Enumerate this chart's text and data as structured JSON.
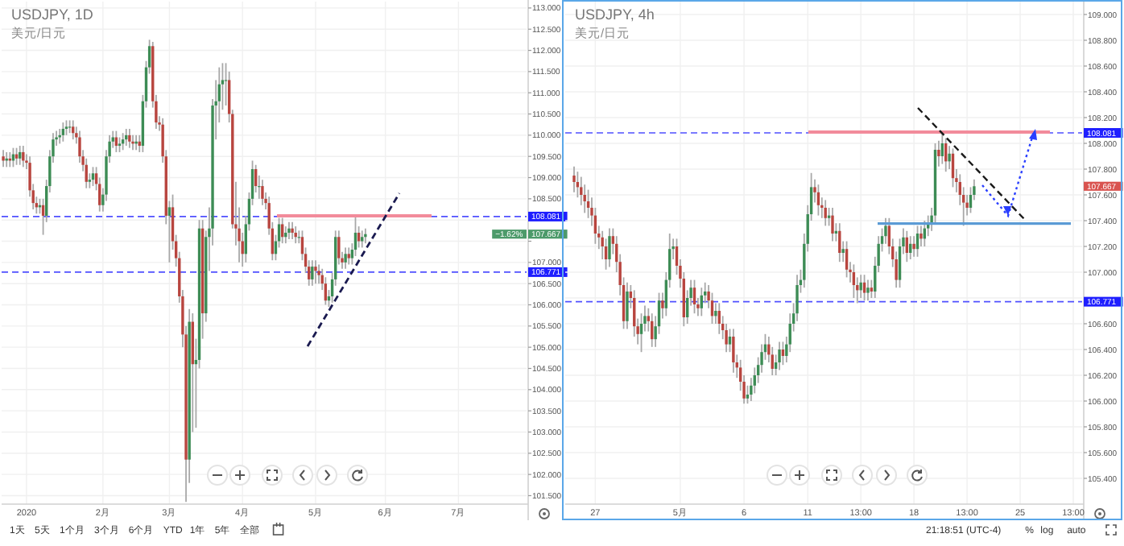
{
  "chart_data": [
    {
      "type": "candlestick",
      "title": "USDJPY, 1D",
      "subtitle": "美元/日元",
      "grid": true,
      "categories": [
        null,
        null,
        null,
        null,
        null,
        null,
        null,
        "2020",
        null,
        null,
        null,
        null,
        null,
        null,
        null,
        null,
        null,
        null,
        null,
        null,
        null,
        null,
        null,
        null,
        null,
        null,
        null,
        null,
        null,
        null,
        "2月",
        null,
        null,
        null,
        null,
        null,
        null,
        null,
        null,
        null,
        null,
        null,
        null,
        null,
        null,
        null,
        null,
        null,
        null,
        null,
        "3月",
        null,
        null,
        null,
        null,
        null,
        null,
        null,
        null,
        null,
        null,
        null,
        null,
        null,
        null,
        null,
        null,
        null,
        null,
        null,
        null,
        null,
        "4月",
        null,
        null,
        null,
        null,
        null,
        null,
        null,
        null,
        null,
        null,
        null,
        null,
        null,
        null,
        null,
        null,
        null,
        null,
        null,
        null,
        null,
        "5月",
        null,
        null,
        null,
        null,
        null,
        null,
        null,
        null,
        null,
        null,
        null,
        null,
        null,
        null,
        null,
        null,
        null,
        null,
        null,
        null,
        "6月",
        null,
        null,
        null,
        null,
        null,
        null,
        null,
        null,
        null,
        null,
        null,
        null,
        null,
        null,
        null,
        null,
        null,
        null,
        null,
        null,
        null,
        "7月",
        null,
        null,
        null,
        null,
        null,
        null,
        null,
        null,
        null,
        null,
        null,
        null,
        null,
        null,
        null,
        null,
        null,
        null,
        null,
        null
      ],
      "ylim": [
        101.3,
        113.15
      ],
      "yticks": [
        {
          "value": 101.5,
          "label": "101.500"
        },
        {
          "value": 102,
          "label": "102.000"
        },
        {
          "value": 102.5,
          "label": "102.500"
        },
        {
          "value": 103,
          "label": "103.000"
        },
        {
          "value": 103.5,
          "label": "103.500"
        },
        {
          "value": 104,
          "label": "104.000"
        },
        {
          "value": 104.5,
          "label": "104.500"
        },
        {
          "value": 105,
          "label": "105.000"
        },
        {
          "value": 105.5,
          "label": "105.500"
        },
        {
          "value": 106,
          "label": "106.000"
        },
        {
          "value": 106.5,
          "label": "106.500"
        },
        {
          "value": 107,
          "label": "107.000"
        },
        {
          "value": 107.5,
          "label": null
        },
        {
          "value": 108,
          "label": null
        },
        {
          "value": 108.5,
          "label": "108.500"
        },
        {
          "value": 109,
          "label": "109.000"
        },
        {
          "value": 109.5,
          "label": "109.500"
        },
        {
          "value": 110,
          "label": "110.000"
        },
        {
          "value": 110.5,
          "label": "110.500"
        },
        {
          "value": 111,
          "label": "111.000"
        },
        {
          "value": 111.5,
          "label": "111.500"
        },
        {
          "value": 112,
          "label": "112.000"
        },
        {
          "value": 112.5,
          "label": "112.500"
        },
        {
          "value": 113,
          "label": "113.000"
        }
      ],
      "ohlc": [
        [
          109.5,
          109.65,
          109.25,
          109.4
        ],
        [
          109.4,
          109.6,
          109.25,
          109.45
        ],
        [
          109.45,
          109.6,
          109.25,
          109.4
        ],
        [
          109.4,
          109.7,
          109.25,
          109.55
        ],
        [
          109.55,
          109.7,
          109.3,
          109.45
        ],
        [
          109.45,
          109.75,
          109.3,
          109.6
        ],
        [
          109.6,
          109.75,
          109.25,
          109.4
        ],
        [
          109.4,
          109.55,
          109.2,
          109.35
        ],
        [
          109.35,
          109.5,
          108.55,
          108.7
        ],
        [
          108.7,
          108.85,
          108.25,
          108.4
        ],
        [
          108.4,
          108.55,
          108.15,
          108.3
        ],
        [
          108.3,
          108.5,
          108.15,
          108.35
        ],
        [
          108.35,
          108.5,
          107.65,
          108.1
        ],
        [
          108.1,
          108.95,
          107.95,
          108.8
        ],
        [
          108.8,
          109.65,
          108.65,
          109.5
        ],
        [
          109.5,
          110.05,
          109.35,
          109.9
        ],
        [
          109.9,
          110.1,
          109.75,
          109.95
        ],
        [
          109.95,
          110.15,
          109.8,
          110.0
        ],
        [
          110.0,
          110.3,
          109.85,
          110.15
        ],
        [
          110.15,
          110.35,
          110.0,
          110.2
        ],
        [
          110.2,
          110.35,
          110.05,
          110.2
        ],
        [
          110.2,
          110.35,
          109.9,
          110.05
        ],
        [
          110.05,
          110.2,
          109.8,
          109.95
        ],
        [
          109.95,
          110.1,
          109.35,
          109.5
        ],
        [
          109.5,
          109.65,
          109.15,
          109.3
        ],
        [
          109.3,
          109.45,
          108.75,
          108.9
        ],
        [
          108.9,
          109.1,
          108.75,
          108.95
        ],
        [
          108.95,
          109.25,
          108.8,
          109.1
        ],
        [
          109.1,
          109.25,
          108.7,
          108.85
        ],
        [
          108.85,
          109.0,
          108.2,
          108.35
        ],
        [
          108.35,
          108.75,
          108.2,
          108.6
        ],
        [
          108.6,
          109.65,
          108.45,
          109.5
        ],
        [
          109.5,
          110.0,
          109.35,
          109.85
        ],
        [
          109.85,
          110.1,
          109.7,
          109.95
        ],
        [
          109.95,
          110.1,
          109.6,
          109.75
        ],
        [
          109.75,
          109.95,
          109.6,
          109.8
        ],
        [
          109.8,
          110.05,
          109.65,
          109.9
        ],
        [
          109.9,
          110.15,
          109.75,
          110.0
        ],
        [
          110.0,
          110.15,
          109.7,
          109.85
        ],
        [
          109.85,
          110.0,
          109.65,
          109.8
        ],
        [
          109.8,
          110.0,
          109.65,
          109.85
        ],
        [
          109.85,
          110.0,
          109.6,
          109.75
        ],
        [
          109.75,
          110.95,
          109.6,
          110.8
        ],
        [
          110.8,
          111.75,
          110.65,
          111.6
        ],
        [
          111.6,
          112.25,
          111.45,
          112.1
        ],
        [
          112.1,
          112.2,
          110.65,
          110.8
        ],
        [
          110.8,
          110.95,
          110.15,
          110.3
        ],
        [
          110.3,
          110.45,
          110.1,
          110.25
        ],
        [
          110.25,
          110.4,
          109.35,
          109.5
        ],
        [
          109.5,
          109.65,
          107.9,
          108.1
        ],
        [
          108.1,
          108.45,
          107.0,
          108.3
        ],
        [
          108.3,
          108.6,
          107.3,
          107.5
        ],
        [
          107.5,
          107.65,
          106.9,
          107.1
        ],
        [
          107.1,
          107.25,
          106.05,
          106.2
        ],
        [
          106.2,
          106.35,
          105.0,
          105.3
        ],
        [
          105.3,
          105.5,
          101.35,
          102.35
        ],
        [
          102.35,
          105.9,
          101.8,
          105.6
        ],
        [
          105.6,
          105.8,
          103.0,
          104.6
        ],
        [
          104.6,
          105.2,
          103.1,
          104.7
        ],
        [
          104.7,
          108.0,
          104.5,
          107.8
        ],
        [
          107.8,
          108.0,
          105.2,
          105.8
        ],
        [
          105.8,
          107.75,
          105.6,
          107.6
        ],
        [
          107.6,
          108.3,
          106.8,
          107.8
        ],
        [
          107.8,
          110.85,
          107.4,
          110.7
        ],
        [
          110.7,
          111.3,
          109.9,
          110.8
        ],
        [
          110.8,
          111.6,
          110.3,
          111.2
        ],
        [
          111.2,
          111.7,
          110.6,
          111.3
        ],
        [
          111.3,
          111.7,
          110.7,
          111.3
        ],
        [
          111.3,
          111.5,
          110.3,
          110.5
        ],
        [
          110.5,
          110.6,
          107.8,
          107.9
        ],
        [
          107.9,
          108.9,
          107.4,
          107.8
        ],
        [
          107.8,
          108.3,
          107.0,
          107.5
        ],
        [
          107.5,
          107.7,
          106.9,
          107.2
        ],
        [
          107.2,
          108.1,
          107.0,
          107.9
        ],
        [
          107.9,
          108.65,
          107.75,
          108.5
        ],
        [
          108.5,
          109.4,
          108.35,
          109.2
        ],
        [
          109.2,
          109.3,
          108.65,
          108.8
        ],
        [
          108.8,
          109.05,
          108.5,
          108.8
        ],
        [
          108.8,
          108.95,
          108.35,
          108.5
        ],
        [
          108.5,
          108.65,
          108.25,
          108.4
        ],
        [
          108.4,
          108.55,
          107.65,
          107.8
        ],
        [
          107.8,
          107.95,
          107.05,
          107.2
        ],
        [
          107.2,
          107.65,
          107.05,
          107.5
        ],
        [
          107.5,
          108.05,
          107.35,
          107.9
        ],
        [
          107.9,
          108.05,
          107.45,
          107.6
        ],
        [
          107.6,
          107.85,
          107.45,
          107.7
        ],
        [
          107.7,
          107.95,
          107.55,
          107.8
        ],
        [
          107.8,
          107.95,
          107.55,
          107.7
        ],
        [
          107.7,
          107.85,
          107.45,
          107.6
        ],
        [
          107.6,
          107.75,
          107.45,
          107.6
        ],
        [
          107.6,
          107.75,
          107.05,
          107.2
        ],
        [
          107.2,
          107.35,
          106.75,
          106.9
        ],
        [
          106.9,
          107.05,
          106.45,
          106.6
        ],
        [
          106.6,
          107.05,
          106.45,
          106.9
        ],
        [
          106.9,
          107.05,
          106.5,
          106.8
        ],
        [
          106.8,
          106.95,
          106.5,
          106.7
        ],
        [
          106.7,
          106.85,
          106.35,
          106.5
        ],
        [
          106.5,
          106.65,
          106.0,
          106.1
        ],
        [
          106.1,
          106.35,
          105.95,
          106.2
        ],
        [
          106.2,
          106.75,
          106.05,
          106.6
        ],
        [
          106.6,
          107.75,
          106.45,
          107.6
        ],
        [
          107.6,
          107.75,
          106.95,
          107.1
        ],
        [
          107.1,
          107.25,
          106.85,
          107.0
        ],
        [
          107.0,
          107.35,
          106.85,
          107.2
        ],
        [
          107.2,
          107.35,
          106.95,
          107.1
        ],
        [
          107.1,
          107.45,
          106.95,
          107.3
        ],
        [
          107.3,
          108.1,
          107.15,
          107.7
        ],
        [
          107.7,
          107.85,
          107.35,
          107.5
        ],
        [
          107.5,
          107.75,
          107.35,
          107.6
        ],
        [
          107.6,
          107.8,
          107.45,
          107.667
        ],
        null,
        null,
        null,
        null,
        null,
        null,
        null,
        null,
        null,
        null,
        null,
        null,
        null,
        null,
        null,
        null,
        null,
        null,
        null,
        null,
        null,
        null,
        null,
        null,
        null,
        null,
        null,
        null,
        null,
        null,
        null,
        null,
        null,
        null,
        null,
        null,
        null,
        null,
        null,
        null,
        null,
        null,
        null,
        null,
        null,
        null,
        null,
        null
      ],
      "ref_lines": [
        {
          "axis": "y",
          "value": 108.081,
          "label": "108.081",
          "color": "#5050ff",
          "line_style": "dashed"
        },
        {
          "axis": "y",
          "value": 106.771,
          "label": "106.771",
          "color": "#5050ff",
          "line_style": "dashed"
        }
      ],
      "annotations": [
        "−1.62%",
        "107.667",
        "1天",
        "5天",
        "1个月",
        "3个月",
        "6个月",
        "YTD",
        "1年",
        "5年",
        "全部"
      ]
    },
    {
      "type": "candlestick",
      "title": "USDJPY, 4h",
      "subtitle": "美元/日元",
      "grid": true,
      "categories": [
        null,
        null,
        null,
        null,
        null,
        null,
        null,
        null,
        "27",
        null,
        null,
        null,
        null,
        null,
        null,
        null,
        null,
        null,
        null,
        null,
        null,
        null,
        null,
        null,
        null,
        null,
        null,
        null,
        null,
        null,
        null,
        null,
        "5月",
        null,
        null,
        null,
        null,
        null,
        null,
        null,
        null,
        null,
        null,
        null,
        null,
        null,
        null,
        null,
        null,
        null,
        "6",
        null,
        null,
        null,
        null,
        null,
        null,
        null,
        null,
        null,
        null,
        null,
        null,
        null,
        null,
        null,
        null,
        null,
        "11",
        null,
        null,
        null,
        null,
        null,
        null,
        null,
        null,
        null,
        null,
        null,
        null,
        null,
        null,
        "13:00",
        null,
        null,
        null,
        null,
        null,
        null,
        null,
        null,
        null,
        null,
        null,
        null,
        null,
        null,
        "18",
        null,
        null,
        null,
        null,
        null,
        null,
        null,
        null,
        null,
        null,
        null,
        null,
        null,
        null,
        "13:00",
        null,
        null,
        null,
        null,
        null,
        null,
        null,
        null,
        null,
        null,
        null,
        null,
        null,
        null,
        "25",
        null,
        null,
        null,
        null,
        null,
        null,
        null,
        null,
        null,
        null,
        null,
        null,
        null,
        null,
        "13:00",
        null,
        null
      ],
      "ylim": [
        105.2,
        109.1
      ],
      "yticks": [
        {
          "value": 105.4,
          "label": "105.400"
        },
        {
          "value": 105.6,
          "label": "105.600"
        },
        {
          "value": 105.8,
          "label": "105.800"
        },
        {
          "value": 106,
          "label": "106.000"
        },
        {
          "value": 106.2,
          "label": "106.200"
        },
        {
          "value": 106.4,
          "label": "106.400"
        },
        {
          "value": 106.6,
          "label": "106.600"
        },
        {
          "value": 106.8,
          "label": null
        },
        {
          "value": 107,
          "label": "107.000"
        },
        {
          "value": 107.2,
          "label": "107.200"
        },
        {
          "value": 107.4,
          "label": "107.400"
        },
        {
          "value": 107.6,
          "label": "107.600"
        },
        {
          "value": 107.8,
          "label": "107.800"
        },
        {
          "value": 108,
          "label": "108.000"
        },
        {
          "value": 108.2,
          "label": "108.200"
        },
        {
          "value": 108.4,
          "label": "108.400"
        },
        {
          "value": 108.6,
          "label": "108.600"
        },
        {
          "value": 108.8,
          "label": "108.800"
        },
        {
          "value": 109,
          "label": "109.000"
        }
      ],
      "ohlc": [
        null,
        null,
        [
          107.75,
          107.82,
          107.62,
          107.7
        ],
        [
          107.7,
          107.78,
          107.58,
          107.66
        ],
        [
          107.66,
          107.74,
          107.52,
          107.6
        ],
        [
          107.6,
          107.68,
          107.46,
          107.55
        ],
        [
          107.55,
          107.64,
          107.42,
          107.5
        ],
        [
          107.5,
          107.58,
          107.36,
          107.44
        ],
        [
          107.44,
          107.5,
          107.22,
          107.3
        ],
        [
          107.3,
          107.36,
          107.18,
          107.27
        ],
        [
          107.27,
          107.32,
          107.1,
          107.2
        ],
        [
          107.2,
          107.26,
          107.02,
          107.1
        ],
        [
          107.1,
          107.34,
          107.04,
          107.28
        ],
        [
          107.28,
          107.34,
          107.14,
          107.22
        ],
        [
          107.22,
          107.28,
          107.0,
          107.08
        ],
        [
          107.08,
          107.14,
          106.82,
          106.9
        ],
        [
          106.9,
          106.96,
          106.56,
          106.62
        ],
        [
          106.62,
          106.92,
          106.56,
          106.85
        ],
        [
          106.85,
          106.9,
          106.72,
          106.8
        ],
        [
          106.8,
          106.86,
          106.5,
          106.58
        ],
        [
          106.58,
          106.64,
          106.44,
          106.52
        ],
        [
          106.52,
          106.68,
          106.38,
          106.6
        ],
        [
          106.6,
          106.74,
          106.54,
          106.66
        ],
        [
          106.66,
          106.72,
          106.54,
          106.62
        ],
        [
          106.62,
          106.68,
          106.42,
          106.48
        ],
        [
          106.48,
          106.66,
          106.42,
          106.58
        ],
        [
          106.58,
          106.84,
          106.52,
          106.78
        ],
        [
          106.78,
          106.84,
          106.64,
          106.72
        ],
        [
          106.72,
          107.0,
          106.66,
          106.94
        ],
        [
          106.94,
          107.3,
          106.88,
          107.18
        ],
        [
          107.18,
          107.26,
          107.1,
          107.2
        ],
        [
          107.2,
          107.26,
          106.98,
          107.05
        ],
        [
          107.05,
          107.1,
          106.88,
          106.95
        ],
        [
          106.95,
          107.0,
          106.58,
          106.65
        ],
        [
          106.65,
          106.86,
          106.6,
          106.8
        ],
        [
          106.8,
          106.94,
          106.74,
          106.88
        ],
        [
          106.88,
          106.94,
          106.68,
          106.75
        ],
        [
          106.75,
          106.8,
          106.66,
          106.72
        ],
        [
          106.72,
          106.88,
          106.66,
          106.82
        ],
        [
          106.82,
          106.92,
          106.76,
          106.85
        ],
        [
          106.85,
          106.9,
          106.72,
          106.78
        ],
        [
          106.78,
          106.84,
          106.6,
          106.66
        ],
        [
          106.66,
          106.76,
          106.6,
          106.7
        ],
        [
          106.7,
          106.76,
          106.52,
          106.6
        ],
        [
          106.6,
          106.66,
          106.48,
          106.55
        ],
        [
          106.55,
          106.6,
          106.38,
          106.44
        ],
        [
          106.44,
          106.56,
          106.38,
          106.5
        ],
        [
          106.5,
          106.56,
          106.22,
          106.3
        ],
        [
          106.3,
          106.36,
          106.18,
          106.26
        ],
        [
          106.26,
          106.32,
          106.08,
          106.15
        ],
        [
          106.15,
          106.2,
          105.98,
          106.02
        ],
        [
          106.02,
          106.12,
          105.98,
          106.05
        ],
        [
          106.05,
          106.18,
          106.0,
          106.12
        ],
        [
          106.12,
          106.26,
          106.06,
          106.2
        ],
        [
          106.2,
          106.34,
          106.14,
          106.28
        ],
        [
          106.28,
          106.44,
          106.22,
          106.38
        ],
        [
          106.38,
          106.52,
          106.32,
          106.44
        ],
        [
          106.44,
          106.5,
          106.3,
          106.36
        ],
        [
          106.36,
          106.42,
          106.2,
          106.25
        ],
        [
          106.25,
          106.36,
          106.2,
          106.3
        ],
        [
          106.3,
          106.46,
          106.24,
          106.4
        ],
        [
          106.4,
          106.46,
          106.28,
          106.35
        ],
        [
          106.35,
          106.5,
          106.3,
          106.44
        ],
        [
          106.44,
          106.68,
          106.38,
          106.6
        ],
        [
          106.6,
          106.76,
          106.54,
          106.68
        ],
        [
          106.68,
          106.98,
          106.62,
          106.9
        ],
        [
          106.9,
          107.02,
          106.84,
          106.94
        ],
        [
          106.94,
          107.3,
          106.88,
          107.22
        ],
        [
          107.22,
          107.52,
          107.16,
          107.45
        ],
        [
          107.45,
          107.77,
          107.4,
          107.66
        ],
        [
          107.66,
          107.72,
          107.54,
          107.62
        ],
        [
          107.62,
          107.68,
          107.44,
          107.52
        ],
        [
          107.52,
          107.58,
          107.42,
          107.5
        ],
        [
          107.5,
          107.56,
          107.36,
          107.42
        ],
        [
          107.42,
          107.5,
          107.36,
          107.44
        ],
        [
          107.44,
          107.5,
          107.24,
          107.3
        ],
        [
          107.3,
          107.38,
          107.24,
          107.32
        ],
        [
          107.32,
          107.38,
          107.08,
          107.15
        ],
        [
          107.15,
          107.24,
          107.08,
          107.18
        ],
        [
          107.18,
          107.24,
          106.96,
          107.02
        ],
        [
          107.02,
          107.08,
          106.92,
          107.0
        ],
        [
          107.0,
          107.06,
          106.8,
          106.9
        ],
        [
          106.9,
          106.96,
          106.76,
          106.86
        ],
        [
          106.86,
          106.98,
          106.8,
          106.92
        ],
        [
          106.92,
          106.98,
          106.78,
          106.84
        ],
        [
          106.84,
          106.94,
          106.78,
          106.88
        ],
        [
          106.88,
          106.94,
          106.8,
          106.85
        ],
        [
          106.85,
          107.12,
          106.8,
          107.05
        ],
        [
          107.05,
          107.28,
          107.0,
          107.22
        ],
        [
          107.22,
          107.34,
          107.16,
          107.28
        ],
        [
          107.28,
          107.42,
          107.22,
          107.36
        ],
        [
          107.36,
          107.42,
          107.14,
          107.2
        ],
        [
          107.2,
          107.26,
          107.04,
          107.1
        ],
        [
          107.1,
          107.16,
          106.88,
          106.94
        ],
        [
          106.94,
          107.26,
          106.88,
          107.2
        ],
        [
          107.2,
          107.34,
          107.14,
          107.27
        ],
        [
          107.27,
          107.32,
          107.08,
          107.15
        ],
        [
          107.15,
          107.28,
          107.1,
          107.22
        ],
        [
          107.22,
          107.28,
          107.12,
          107.18
        ],
        [
          107.18,
          107.36,
          107.12,
          107.3
        ],
        [
          107.3,
          107.36,
          107.2,
          107.26
        ],
        [
          107.26,
          107.4,
          107.2,
          107.34
        ],
        [
          107.34,
          107.44,
          107.28,
          107.38
        ],
        [
          107.38,
          107.5,
          107.32,
          107.44
        ],
        [
          107.44,
          108.0,
          107.38,
          107.95
        ],
        [
          107.95,
          108.02,
          107.82,
          107.9
        ],
        [
          107.9,
          108.08,
          107.84,
          108.0
        ],
        [
          108.0,
          108.04,
          107.78,
          107.86
        ],
        [
          107.86,
          107.98,
          107.8,
          107.92
        ],
        [
          107.92,
          107.96,
          107.66,
          107.73
        ],
        [
          107.73,
          107.8,
          107.62,
          107.7
        ],
        [
          107.7,
          107.76,
          107.52,
          107.6
        ],
        [
          107.6,
          107.66,
          107.36,
          107.54
        ],
        [
          107.54,
          107.6,
          107.44,
          107.5
        ],
        [
          107.5,
          107.66,
          107.46,
          107.6
        ],
        [
          107.6,
          107.72,
          107.56,
          107.667
        ],
        null,
        null,
        null,
        null,
        null,
        null,
        null,
        null,
        null,
        null,
        null,
        null,
        null,
        null,
        null,
        null,
        null,
        null,
        null,
        null,
        null,
        null,
        null,
        null,
        null,
        null,
        null,
        null,
        null,
        null
      ],
      "ref_lines": [
        {
          "axis": "y",
          "value": 108.081,
          "label": "108.081",
          "color": "#5050ff",
          "line_style": "dashed"
        },
        {
          "axis": "y",
          "value": 106.771,
          "label": "106.771",
          "color": "#5050ff",
          "line_style": "dashed"
        }
      ],
      "annotations": [
        "107.667",
        "21:18:51 (UTC-4)",
        "%",
        "log",
        "auto"
      ]
    }
  ]
}
